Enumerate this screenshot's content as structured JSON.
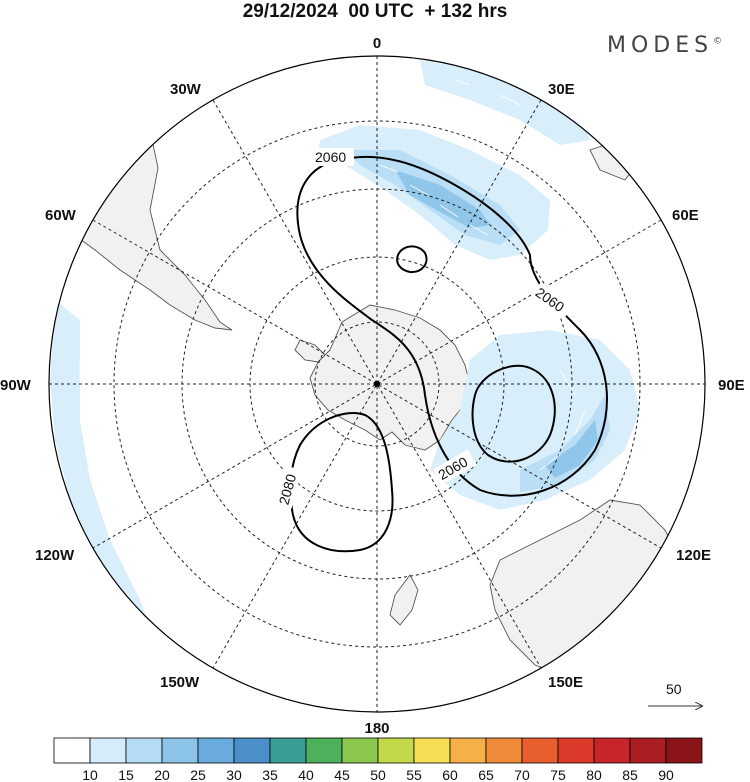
{
  "header": {
    "title": "29/12/2024  00 UTC  + 132 hrs",
    "brand": "MODES",
    "brand_mark": "©"
  },
  "map": {
    "projection": "south polar stereographic",
    "longitude_labels": {
      "top": "0",
      "bottom": "180",
      "left": "90W",
      "right": "90E",
      "upper_left_1": "30W",
      "upper_left_2": "60W",
      "lower_left_1": "120W",
      "lower_left_2": "150W",
      "upper_right_1": "30E",
      "upper_right_2": "60E",
      "lower_right_1": "120E",
      "lower_right_2": "150E"
    },
    "contour_labels": [
      "2060",
      "2060",
      "2060",
      "2080"
    ],
    "vector_reference": "50",
    "colors": {
      "land": "#f1f1f1",
      "shade_light": "#d8eefa",
      "shade_mid": "#b9def5",
      "shade_dark": "#8fc6ea",
      "contour": "#000000"
    }
  },
  "colorbar": {
    "labels": [
      "10",
      "15",
      "20",
      "25",
      "30",
      "35",
      "40",
      "45",
      "50",
      "55",
      "60",
      "65",
      "70",
      "75",
      "80",
      "85",
      "90"
    ],
    "colors": [
      "#ffffff",
      "#d6ecfa",
      "#b4dcf5",
      "#8cc4ea",
      "#6aabde",
      "#4a8fca",
      "#3a9e96",
      "#4cb15a",
      "#8cc84f",
      "#c4d94a",
      "#f6de55",
      "#f5b04a",
      "#f08a3a",
      "#e85e2e",
      "#dc3a2a",
      "#c6252a",
      "#a81e22",
      "#8a1418"
    ]
  }
}
